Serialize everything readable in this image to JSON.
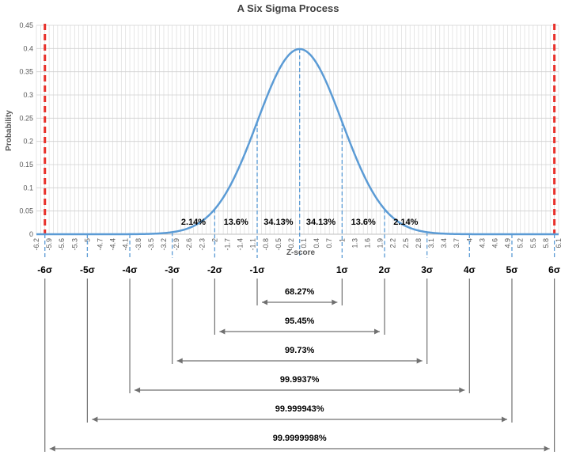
{
  "chart_data": {
    "type": "line",
    "title": "A Six Sigma Process",
    "xlabel": "Z-score",
    "ylabel": "Probability",
    "xlim": [
      -6.2,
      6.1
    ],
    "ylim": [
      0,
      0.45
    ],
    "yticks": [
      "0",
      "0.05",
      "0.1",
      "0.15",
      "0.2",
      "0.25",
      "0.3",
      "0.35",
      "0.4",
      "0.45"
    ],
    "xticks": [
      "-6.2",
      "-5.9",
      "-5.6",
      "-5.3",
      "-5",
      "-4.7",
      "-4.4",
      "-4.1",
      "-3.8",
      "-3.5",
      "-3.2",
      "-2.9",
      "-2.6",
      "-2.3",
      "-2",
      "-1.7",
      "-1.4",
      "-1.1",
      "-0.8",
      "-0.5",
      "-0.2",
      "0.1",
      "0.4",
      "0.7",
      "1",
      "1.3",
      "1.6",
      "1.9",
      "2.2",
      "2.5",
      "2.8",
      "3.1",
      "3.4",
      "3.7",
      "4",
      "4.3",
      "4.6",
      "4.9",
      "5.2",
      "5.5",
      "5.8",
      "6.1"
    ],
    "grid": true,
    "series": [
      {
        "type": "line",
        "x": [
          -6.2,
          -5.9,
          -5.6,
          -5.3,
          -5,
          -4.7,
          -4.4,
          -4.1,
          -3.8,
          -3.5,
          -3.2,
          -2.9,
          -2.6,
          -2.3,
          -2,
          -1.7,
          -1.4,
          -1.1,
          -0.8,
          -0.5,
          -0.2,
          0.1,
          0.4,
          0.7,
          1,
          1.3,
          1.6,
          1.9,
          2.2,
          2.5,
          2.8,
          3.1,
          3.4,
          3.7,
          4,
          4.3,
          4.6,
          4.9,
          5.2,
          5.5,
          5.8,
          6.1
        ],
        "y": [
          0,
          0,
          0,
          0,
          0,
          0,
          0,
          0,
          0.0003,
          0.0009,
          0.0024,
          0.006,
          0.0136,
          0.0283,
          0.054,
          0.094,
          0.1497,
          0.2179,
          0.2897,
          0.3521,
          0.391,
          0.397,
          0.3683,
          0.3123,
          0.242,
          0.1714,
          0.1109,
          0.0656,
          0.0355,
          0.0175,
          0.0079,
          0.0033,
          0.0012,
          0.0004,
          0.0001,
          0,
          0,
          0,
          0,
          0,
          0,
          0
        ],
        "color": "#5B9BD5"
      }
    ],
    "spec_limits": [
      -6,
      6
    ],
    "spec_limit_color": "#E8302A",
    "sigma_markers": [
      {
        "z": -6,
        "label": "-6σ"
      },
      {
        "z": -5,
        "label": "-5σ"
      },
      {
        "z": -4,
        "label": "-4σ"
      },
      {
        "z": -3,
        "label": "-3σ"
      },
      {
        "z": -2,
        "label": "-2σ"
      },
      {
        "z": -1,
        "label": "-1σ"
      },
      {
        "z": 1,
        "label": "1σ"
      },
      {
        "z": 2,
        "label": "2σ"
      },
      {
        "z": 3,
        "label": "3σ"
      },
      {
        "z": 4,
        "label": "4σ"
      },
      {
        "z": 5,
        "label": "5σ"
      },
      {
        "z": 6,
        "label": "6σ"
      }
    ],
    "region_labels": [
      {
        "z": -2.5,
        "label": "2.14%"
      },
      {
        "z": -1.5,
        "label": "13.6%"
      },
      {
        "z": -0.5,
        "label": "34.13%"
      },
      {
        "z": 0.5,
        "label": "34.13%"
      },
      {
        "z": 1.5,
        "label": "13.6%"
      },
      {
        "z": 2.5,
        "label": "2.14%"
      }
    ],
    "coverage_ranges": [
      {
        "sigma": 1,
        "label": "68.27%"
      },
      {
        "sigma": 2,
        "label": "95.45%"
      },
      {
        "sigma": 3,
        "label": "99.73%"
      },
      {
        "sigma": 4,
        "label": "99.9937%"
      },
      {
        "sigma": 5,
        "label": "99.999943%"
      },
      {
        "sigma": 6,
        "label": "99.9999998%"
      }
    ]
  }
}
